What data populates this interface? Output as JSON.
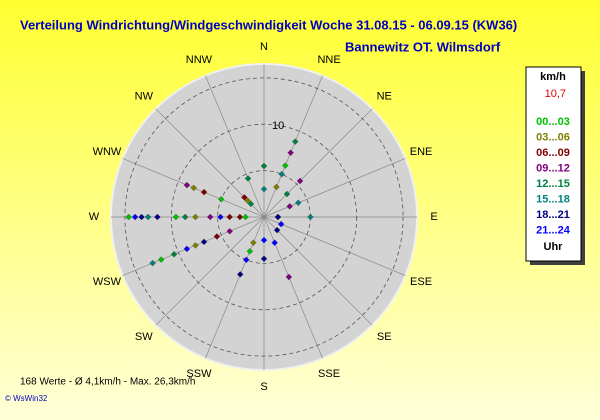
{
  "chart_data": {
    "type": "windrose",
    "title": "Verteilung Windrichtung/Windgeschwindigkeit  Woche 31.08.15 - 06.09.15 (KW36)",
    "subtitle": "Bannewitz OT. Wilmsdorf",
    "directions": [
      "N",
      "NNE",
      "NE",
      "ENE",
      "E",
      "ESE",
      "SE",
      "SSE",
      "S",
      "SSW",
      "SW",
      "WSW",
      "W",
      "WNW",
      "NW",
      "NNW"
    ],
    "rlim": [
      0,
      16.5
    ],
    "rings": [
      5,
      10,
      15
    ],
    "rticks": [
      10
    ],
    "legend_title": "km/h",
    "legend_value": "10,7",
    "legend_footer": "Uhr",
    "series": [
      {
        "name": "00...03",
        "color": "#00c000",
        "x": [
          270,
          270,
          247.5,
          22.5,
          292.5,
          202.5,
          270
        ],
        "values": [
          14.6,
          9.5,
          12.0,
          6.0,
          5.0,
          4.0,
          2.0
        ]
      },
      {
        "name": "03...06",
        "color": "#808000",
        "x": [
          247.5,
          270,
          292.5,
          22.5,
          202.5,
          315
        ],
        "values": [
          8.0,
          7.4,
          8.2,
          3.5,
          3.0,
          2.5
        ]
      },
      {
        "name": "06...09",
        "color": "#800000",
        "x": [
          270,
          270,
          292.5,
          247.5,
          90,
          315
        ],
        "values": [
          3.7,
          2.6,
          7.0,
          5.5,
          1.5,
          3.0
        ]
      },
      {
        "name": "09...12",
        "color": "#800080",
        "x": [
          292.5,
          22.5,
          45,
          157.5,
          67.5,
          270,
          247.5
        ],
        "values": [
          9.0,
          7.5,
          5.5,
          7.0,
          3.0,
          5.8,
          4.0
        ]
      },
      {
        "name": "12...15",
        "color": "#008040",
        "x": [
          0,
          22.5,
          45,
          247.5,
          270,
          315,
          337.5
        ],
        "values": [
          5.5,
          8.8,
          3.5,
          10.5,
          8.5,
          2.0,
          4.5
        ]
      },
      {
        "name": "15...18",
        "color": "#008080",
        "x": [
          270,
          247.5,
          90,
          67.5,
          22.5,
          0
        ],
        "values": [
          12.5,
          13.0,
          5.0,
          4.0,
          5.0,
          3.0
        ]
      },
      {
        "name": "18...21",
        "color": "#000080",
        "x": [
          270,
          270,
          202.5,
          180,
          247.5,
          135,
          90
        ],
        "values": [
          13.2,
          11.5,
          6.7,
          4.5,
          7.0,
          2.0,
          1.5
        ]
      },
      {
        "name": "21...24",
        "color": "#0000ff",
        "x": [
          270,
          270,
          202.5,
          247.5,
          180,
          157.5,
          112.5
        ],
        "values": [
          13.9,
          4.7,
          5.0,
          9.0,
          2.5,
          3.0,
          2.0
        ]
      }
    ],
    "footer": "168 Werte   -   Ø 4,1km/h  -  Max. 26,3km/h",
    "copyright": "© WsWin32"
  }
}
